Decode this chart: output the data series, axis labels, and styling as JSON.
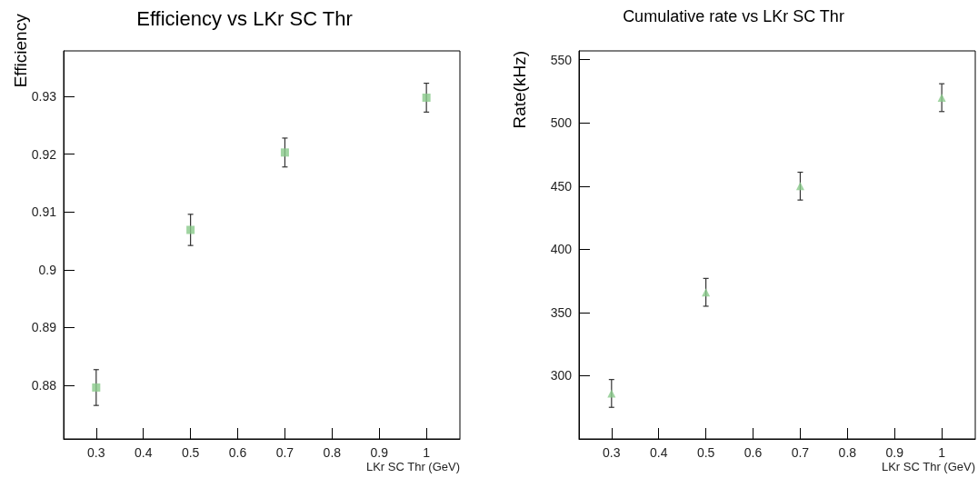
{
  "chart_data": [
    {
      "type": "scatter",
      "title": "Efficiency vs LKr SC Thr",
      "xlabel": "LKr SC Thr (GeV)",
      "ylabel": "Efficiency",
      "x": [
        0.3,
        0.5,
        0.7,
        1
      ],
      "series": [
        {
          "color": "#88c98a",
          "values": [
            0.8796,
            0.9069,
            0.9203,
            0.9298
          ],
          "errors": [
            0.0031,
            0.0027,
            0.0025,
            0.0025
          ]
        }
      ],
      "xlim": [
        0.231,
        1.071
      ],
      "xticks": [
        0.3,
        0.4,
        0.5,
        0.6,
        0.7,
        0.8,
        0.9,
        1
      ],
      "ylim": [
        0.8707,
        0.9379
      ],
      "yticks": [
        0.88,
        0.89,
        0.9,
        0.91,
        0.92,
        0.93
      ],
      "marker": "square",
      "grid": false
    },
    {
      "type": "scatter",
      "title": "Cumulative rate vs LKr SC Thr",
      "xlabel": "LKr SC Thr (GeV)",
      "ylabel": "Rate(kHz)",
      "x": [
        0.3,
        0.5,
        0.7,
        1
      ],
      "series": [
        {
          "color": "#88c98a",
          "values": [
            286,
            366,
            450,
            520
          ],
          "errors": [
            11,
            11,
            11,
            11
          ]
        }
      ],
      "xlim": [
        0.231,
        1.071
      ],
      "xticks": [
        0.3,
        0.4,
        0.5,
        0.6,
        0.7,
        0.8,
        0.9,
        1
      ],
      "ylim": [
        250,
        557
      ],
      "yticks": [
        300,
        350,
        400,
        450,
        500,
        550
      ],
      "marker": "triangle",
      "grid": false
    }
  ]
}
